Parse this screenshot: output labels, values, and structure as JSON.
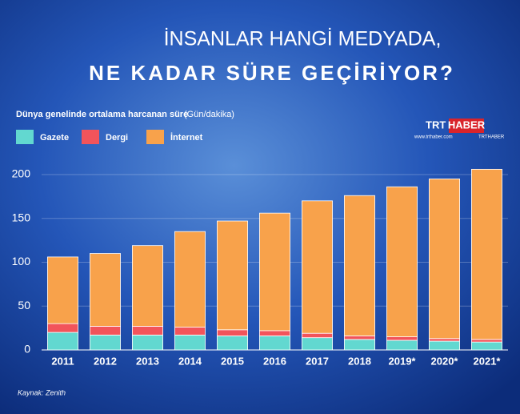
{
  "chart_data": {
    "type": "stacked_bar",
    "title": [
      "İNSANLAR HANGİ MEDYADA,",
      "NE KADAR SÜRE GEÇİRİYOR?"
    ],
    "subtitle": "Dünya genelinde ortalama harcanan süre",
    "subtitle_unit": "(Gün/dakika)",
    "logo": {
      "trt": "TRT",
      "haber": "HABER"
    },
    "website": "www.trthaber.com",
    "social": "TRTHABER",
    "source": "Kaynak: Zenith",
    "categories": [
      "2011",
      "2012",
      "2013",
      "2014",
      "2015",
      "2016",
      "2017",
      "2018",
      "2019*",
      "2020*",
      "2021*"
    ],
    "series": [
      {
        "name": "Gazete",
        "color": "#62d8d0",
        "values": [
          20,
          17,
          17,
          17,
          16,
          16,
          14,
          12,
          11,
          10,
          9
        ]
      },
      {
        "name": "Dergi",
        "color": "#f2545b",
        "values": [
          10,
          10,
          10,
          9,
          7,
          6,
          5,
          4,
          4,
          3,
          3
        ]
      },
      {
        "name": "İnternet",
        "color": "#f8a24b",
        "values": [
          76,
          83,
          92,
          109,
          124,
          134,
          151,
          160,
          171,
          182,
          194
        ]
      }
    ],
    "ylim": [
      0,
      210
    ],
    "yticks": [
      0,
      50,
      100,
      150,
      200
    ],
    "grid": true
  }
}
